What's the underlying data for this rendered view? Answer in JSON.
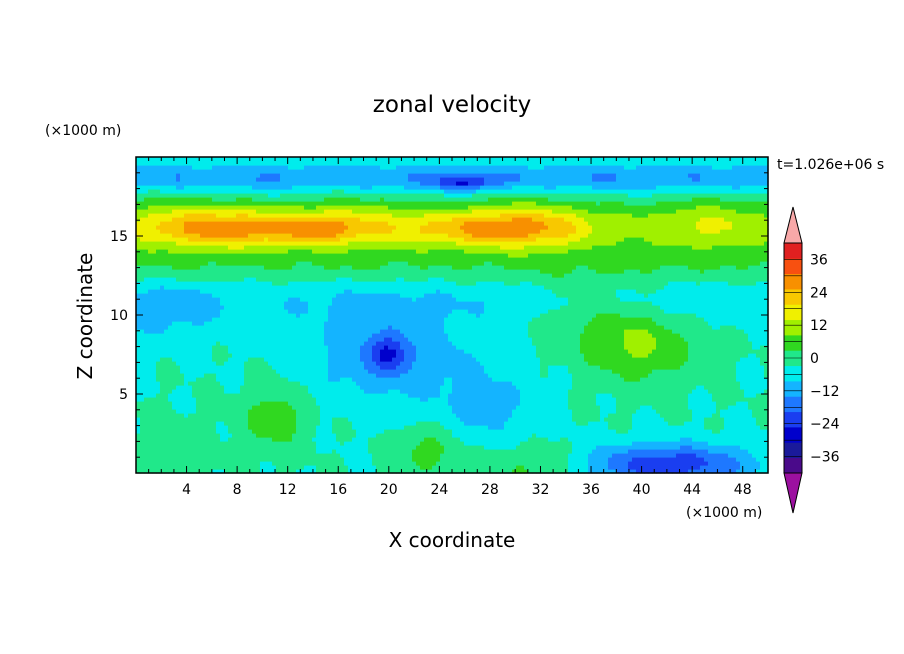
{
  "chart_data": {
    "type": "heatmap",
    "title": "zonal velocity",
    "time_label": "t=1.026e+06 s",
    "xlabel": "X coordinate",
    "ylabel": "Z coordinate",
    "x_unit": "(×1000 m)",
    "y_unit": "(×1000 m)",
    "xlim": [
      0,
      50
    ],
    "ylim": [
      0,
      20
    ],
    "x_ticks": [
      4,
      8,
      12,
      16,
      20,
      24,
      28,
      32,
      36,
      40,
      44,
      48
    ],
    "y_ticks": [
      5,
      10,
      15
    ],
    "grid": false,
    "colorbar": {
      "levels": [
        -42,
        -36,
        -30,
        -24,
        -18,
        -12,
        -6,
        0,
        6,
        12,
        18,
        24,
        30,
        36,
        42
      ],
      "colors": [
        "#4a0a8a",
        "#1a1a9a",
        "#0000cc",
        "#1a3ef0",
        "#1e78ff",
        "#14b4ff",
        "#00ecec",
        "#20e88a",
        "#30d820",
        "#a0f000",
        "#f0f000",
        "#f8c800",
        "#f89000",
        "#f85010",
        "#e02020"
      ],
      "under_color": "#9c10a0",
      "over_color": "#f8a8a8",
      "tick_labels": [
        "36",
        "24",
        "12",
        "0",
        "−12",
        "−24",
        "−36"
      ],
      "tick_values": [
        36,
        24,
        12,
        0,
        -12,
        -24,
        -36
      ],
      "placement": "right"
    },
    "field_features": [
      {
        "x": 9,
        "z": 15.5,
        "sx": 7,
        "sz": 1.2,
        "value": 20
      },
      {
        "x": 28,
        "z": 15.5,
        "sx": 7,
        "sz": 1.2,
        "value": 18
      },
      {
        "x": 15,
        "z": 15.5,
        "sx": 2.5,
        "sz": 0.8,
        "value": 8
      },
      {
        "x": 26,
        "z": 18.4,
        "sx": 2.5,
        "sz": 0.5,
        "value": -14
      },
      {
        "x": 20,
        "z": 7.5,
        "sx": 6,
        "sz": 3,
        "value": -12
      },
      {
        "x": 20,
        "z": 7.6,
        "sx": 1.5,
        "sz": 1.1,
        "value": -14
      },
      {
        "x": 40,
        "z": 8,
        "sx": 4,
        "sz": 2.2,
        "value": 12
      },
      {
        "x": 36,
        "z": 10,
        "sx": 5,
        "sz": 2.5,
        "value": 6
      },
      {
        "x": 42,
        "z": 0.6,
        "sx": 7,
        "sz": 1.3,
        "value": -22
      },
      {
        "x": 31,
        "z": 0.5,
        "sx": 5,
        "sz": 1.5,
        "value": 8
      },
      {
        "x": 23,
        "z": 1.5,
        "sx": 2.5,
        "sz": 1.5,
        "value": 9
      },
      {
        "x": 11,
        "z": 3.5,
        "sx": 2.5,
        "sz": 2,
        "value": 10
      },
      {
        "x": 3,
        "z": 1.5,
        "sx": 3,
        "sz": 2,
        "value": 4
      },
      {
        "x": 2,
        "z": 10,
        "sx": 5,
        "sz": 2,
        "value": -6
      },
      {
        "x": 28,
        "z": 4,
        "sx": 4,
        "sz": 3,
        "value": -7
      }
    ]
  }
}
